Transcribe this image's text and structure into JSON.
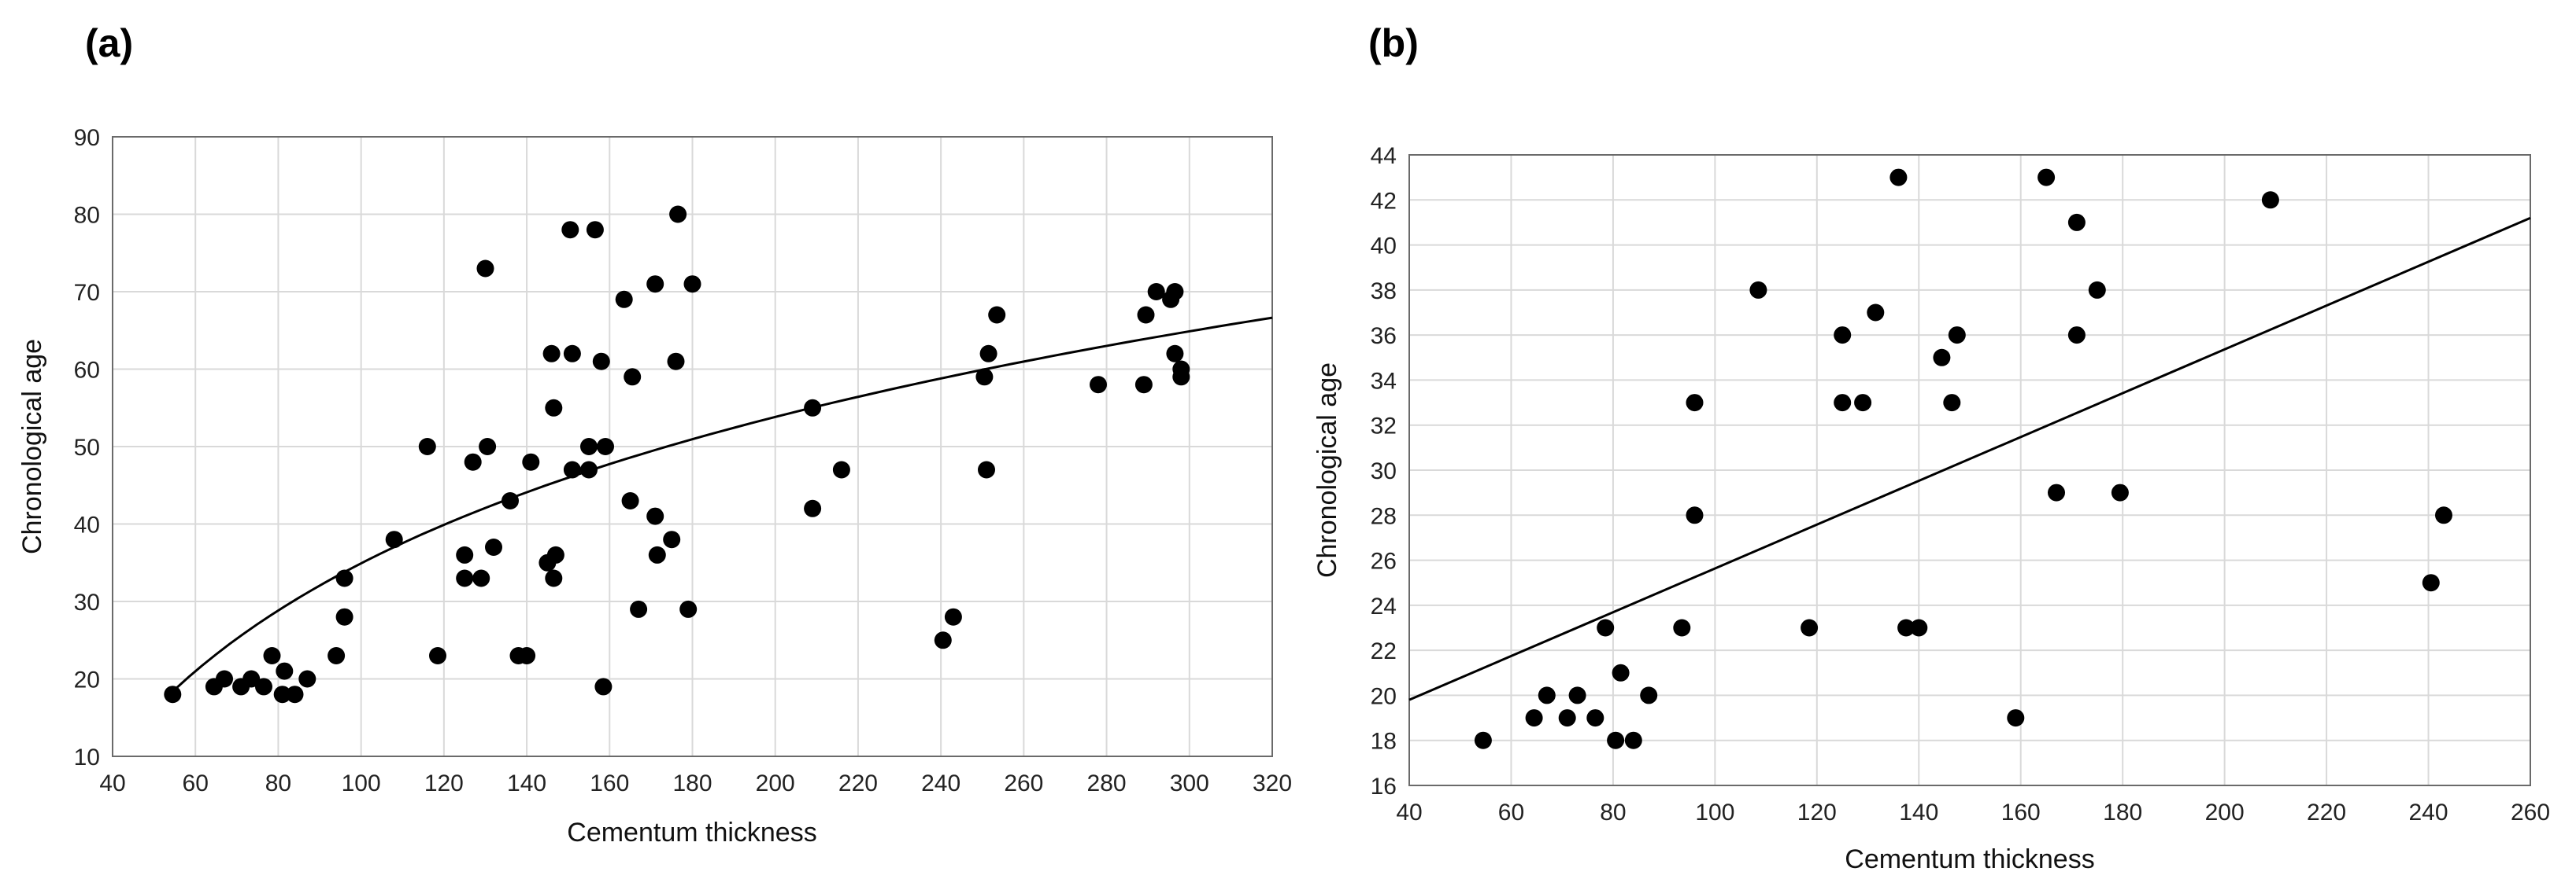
{
  "chart_data": [
    {
      "type": "scatter",
      "panel_label": "(a)",
      "xlabel": "Cementum thickness",
      "ylabel": "Chronological age",
      "xlim": [
        40,
        320
      ],
      "ylim": [
        10,
        90
      ],
      "xticks": [
        40,
        60,
        80,
        100,
        120,
        140,
        160,
        180,
        200,
        220,
        240,
        260,
        280,
        300,
        320
      ],
      "yticks": [
        10,
        20,
        30,
        40,
        50,
        60,
        70,
        80,
        90
      ],
      "grid": true,
      "fit": {
        "type": "logarithmic",
        "x_start": 55,
        "x_end": 320,
        "a": -90.66,
        "b": 27.27
      },
      "points": [
        [
          54.5,
          18
        ],
        [
          64.5,
          19
        ],
        [
          67,
          20
        ],
        [
          71,
          19
        ],
        [
          73.5,
          20
        ],
        [
          76.5,
          19
        ],
        [
          78.5,
          23
        ],
        [
          81,
          18
        ],
        [
          81.5,
          21
        ],
        [
          84,
          18
        ],
        [
          87,
          20
        ],
        [
          94,
          23
        ],
        [
          96,
          28
        ],
        [
          96,
          33
        ],
        [
          108,
          38
        ],
        [
          116,
          50
        ],
        [
          118.5,
          23
        ],
        [
          125,
          36
        ],
        [
          125,
          33
        ],
        [
          127,
          48
        ],
        [
          129,
          33
        ],
        [
          130,
          73
        ],
        [
          130.5,
          50
        ],
        [
          132,
          37
        ],
        [
          136,
          43
        ],
        [
          138,
          23
        ],
        [
          140,
          23
        ],
        [
          141,
          48
        ],
        [
          145,
          35
        ],
        [
          146,
          62
        ],
        [
          146.5,
          33
        ],
        [
          147,
          36
        ],
        [
          146.5,
          55
        ],
        [
          150.5,
          78
        ],
        [
          151,
          62
        ],
        [
          151,
          47
        ],
        [
          155,
          47
        ],
        [
          155,
          50
        ],
        [
          156.5,
          78
        ],
        [
          158,
          61
        ],
        [
          159,
          50
        ],
        [
          158.5,
          19
        ],
        [
          163.5,
          69
        ],
        [
          165,
          43
        ],
        [
          165.5,
          59
        ],
        [
          167,
          29
        ],
        [
          171,
          71
        ],
        [
          171,
          41
        ],
        [
          171.5,
          36
        ],
        [
          175,
          38
        ],
        [
          176,
          61
        ],
        [
          176.5,
          80
        ],
        [
          179,
          29
        ],
        [
          180,
          71
        ],
        [
          209,
          55
        ],
        [
          209,
          42
        ],
        [
          216,
          47
        ],
        [
          240.5,
          25
        ],
        [
          243,
          28
        ],
        [
          250.5,
          59
        ],
        [
          251,
          47
        ],
        [
          251.5,
          62
        ],
        [
          253.5,
          67
        ],
        [
          278,
          58
        ],
        [
          289,
          58
        ],
        [
          289.5,
          67
        ],
        [
          292,
          70
        ],
        [
          295.5,
          69
        ],
        [
          296.5,
          70
        ],
        [
          296.5,
          62
        ],
        [
          298,
          60
        ],
        [
          298,
          59
        ]
      ]
    },
    {
      "type": "scatter",
      "panel_label": "(b)",
      "xlabel": "Cementum thickness",
      "ylabel": "Chronological age",
      "xlim": [
        40,
        260
      ],
      "ylim": [
        16,
        44
      ],
      "xticks": [
        40,
        60,
        80,
        100,
        120,
        140,
        160,
        180,
        200,
        220,
        240,
        260
      ],
      "yticks": [
        16,
        18,
        20,
        22,
        24,
        26,
        28,
        30,
        32,
        34,
        36,
        38,
        40,
        42,
        44
      ],
      "grid": true,
      "fit": {
        "type": "linear",
        "x_start": 40,
        "x_end": 260,
        "y_start": 19.8,
        "y_end": 41.2
      },
      "points": [
        [
          54.5,
          18
        ],
        [
          64.5,
          19
        ],
        [
          67,
          20
        ],
        [
          71,
          19
        ],
        [
          73,
          20
        ],
        [
          76.5,
          19
        ],
        [
          78.5,
          23
        ],
        [
          80.5,
          18
        ],
        [
          81.5,
          21
        ],
        [
          84,
          18
        ],
        [
          87,
          20
        ],
        [
          93.5,
          23
        ],
        [
          96,
          33
        ],
        [
          96,
          28
        ],
        [
          108.5,
          38
        ],
        [
          118.5,
          23
        ],
        [
          125,
          36
        ],
        [
          125,
          33
        ],
        [
          129,
          33
        ],
        [
          131.5,
          37
        ],
        [
          136,
          43
        ],
        [
          137.5,
          23
        ],
        [
          140,
          23
        ],
        [
          144.5,
          35
        ],
        [
          146.5,
          33
        ],
        [
          147.5,
          36
        ],
        [
          159,
          19
        ],
        [
          165,
          43
        ],
        [
          167,
          29
        ],
        [
          171,
          41
        ],
        [
          171,
          36
        ],
        [
          175,
          38
        ],
        [
          179.5,
          29
        ],
        [
          209,
          42
        ],
        [
          240.5,
          25
        ],
        [
          243,
          28
        ]
      ]
    }
  ]
}
